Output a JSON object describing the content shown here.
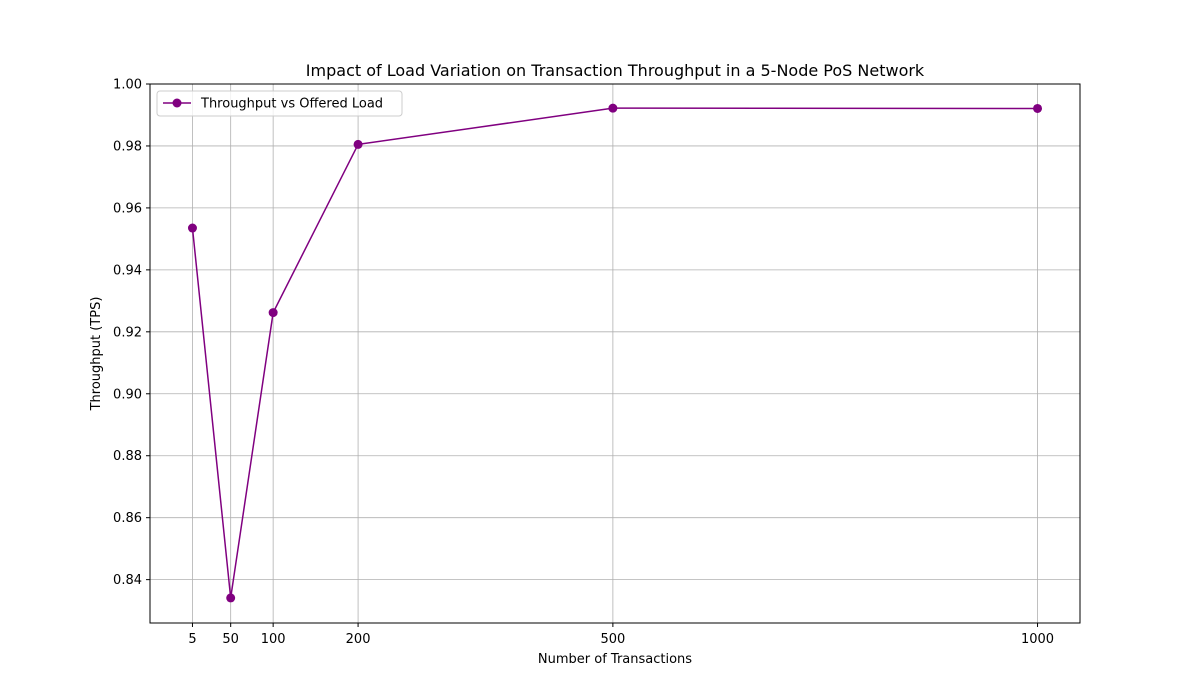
{
  "chart_data": {
    "type": "line",
    "title": "Impact of Load Variation on Transaction Throughput in a 5-Node PoS Network",
    "xlabel": "Number of Transactions",
    "ylabel": "Throughput (TPS)",
    "xlim": [
      -45,
      1050
    ],
    "ylim": [
      0.826,
      1.0
    ],
    "x_ticks": [
      5,
      50,
      100,
      200,
      500,
      1000
    ],
    "y_ticks": [
      0.84,
      0.86,
      0.88,
      0.9,
      0.92,
      0.94,
      0.96,
      0.98,
      1.0
    ],
    "y_tick_labels": [
      "0.84",
      "0.86",
      "0.88",
      "0.90",
      "0.92",
      "0.94",
      "0.96",
      "0.98",
      "1.00"
    ],
    "grid": true,
    "legend_position": "top-left",
    "series": [
      {
        "name": "Throughput vs Offered Load",
        "color": "#800080",
        "marker": "circle",
        "x": [
          5,
          50,
          100,
          200,
          500,
          1000
        ],
        "y": [
          0.9535,
          0.8341,
          0.9262,
          0.9805,
          0.9922,
          0.9921
        ]
      }
    ]
  }
}
